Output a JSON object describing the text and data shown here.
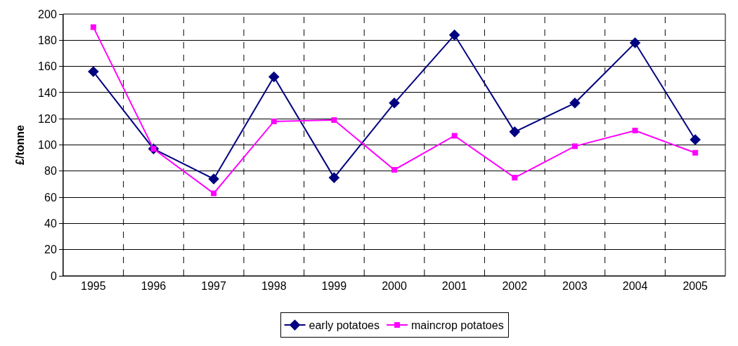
{
  "chart_data": {
    "type": "line",
    "ylabel": "£/tonne",
    "categories": [
      "1995",
      "1996",
      "1997",
      "1998",
      "1999",
      "2000",
      "2001",
      "2002",
      "2003",
      "2004",
      "2005"
    ],
    "series": [
      {
        "name": "early potatoes",
        "color": "#000080",
        "marker": "diamond",
        "values": [
          156,
          97,
          74,
          152,
          75,
          132,
          184,
          110,
          132,
          178,
          104
        ]
      },
      {
        "name": "maincrop potatoes",
        "color": "#ff00ff",
        "marker": "square",
        "values": [
          190,
          97,
          63,
          118,
          119,
          81,
          107,
          75,
          99,
          111,
          94
        ]
      }
    ],
    "ylim": [
      0,
      200
    ],
    "yticks": [
      0,
      20,
      40,
      60,
      80,
      100,
      120,
      140,
      160,
      180,
      200
    ],
    "grid": true,
    "legend": "bottom",
    "line_style": "solid"
  }
}
